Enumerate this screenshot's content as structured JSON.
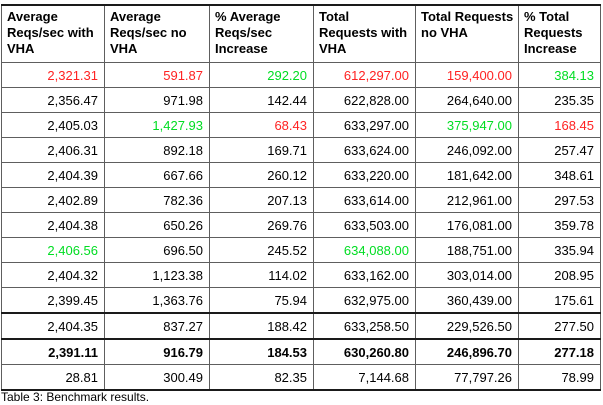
{
  "palette": {
    "red": "#ff2222",
    "green": "#00dd22",
    "text": "#000000"
  },
  "table": {
    "caption": "Table 3: Benchmark results.",
    "columns": [
      "Average Reqs/sec with VHA",
      "Average Reqs/sec no VHA",
      "% Average Reqs/sec Increase",
      "Total Requests with VHA",
      "Total Requests no VHA",
      "% Total Requests Increase"
    ],
    "rows": [
      {
        "cells": [
          "2,321.31",
          "591.87",
          "292.20",
          "612,297.00",
          "159,400.00",
          "384.13"
        ],
        "colors": [
          "red",
          "red",
          "green",
          "red",
          "red",
          "green"
        ],
        "bold": false,
        "thick_top": false
      },
      {
        "cells": [
          "2,356.47",
          "971.98",
          "142.44",
          "622,828.00",
          "264,640.00",
          "235.35"
        ],
        "colors": [
          null,
          null,
          null,
          null,
          null,
          null
        ],
        "bold": false,
        "thick_top": false
      },
      {
        "cells": [
          "2,405.03",
          "1,427.93",
          "68.43",
          "633,297.00",
          "375,947.00",
          "168.45"
        ],
        "colors": [
          null,
          "green",
          "red",
          null,
          "green",
          "red"
        ],
        "bold": false,
        "thick_top": false
      },
      {
        "cells": [
          "2,406.31",
          "892.18",
          "169.71",
          "633,624.00",
          "246,092.00",
          "257.47"
        ],
        "colors": [
          null,
          null,
          null,
          null,
          null,
          null
        ],
        "bold": false,
        "thick_top": false
      },
      {
        "cells": [
          "2,404.39",
          "667.66",
          "260.12",
          "633,220.00",
          "181,642.00",
          "348.61"
        ],
        "colors": [
          null,
          null,
          null,
          null,
          null,
          null
        ],
        "bold": false,
        "thick_top": false
      },
      {
        "cells": [
          "2,402.89",
          "782.36",
          "207.13",
          "633,614.00",
          "212,961.00",
          "297.53"
        ],
        "colors": [
          null,
          null,
          null,
          null,
          null,
          null
        ],
        "bold": false,
        "thick_top": false
      },
      {
        "cells": [
          "2,404.38",
          "650.26",
          "269.76",
          "633,503.00",
          "176,081.00",
          "359.78"
        ],
        "colors": [
          null,
          null,
          null,
          null,
          null,
          null
        ],
        "bold": false,
        "thick_top": false
      },
      {
        "cells": [
          "2,406.56",
          "696.50",
          "245.52",
          "634,088.00",
          "188,751.00",
          "335.94"
        ],
        "colors": [
          "green",
          null,
          null,
          "green",
          null,
          null
        ],
        "bold": false,
        "thick_top": false
      },
      {
        "cells": [
          "2,404.32",
          "1,123.38",
          "114.02",
          "633,162.00",
          "303,014.00",
          "208.95"
        ],
        "colors": [
          null,
          null,
          null,
          null,
          null,
          null
        ],
        "bold": false,
        "thick_top": false
      },
      {
        "cells": [
          "2,399.45",
          "1,363.76",
          "75.94",
          "632,975.00",
          "360,439.00",
          "175.61"
        ],
        "colors": [
          null,
          null,
          null,
          null,
          null,
          null
        ],
        "bold": false,
        "thick_top": false
      },
      {
        "cells": [
          "2,404.35",
          "837.27",
          "188.42",
          "633,258.50",
          "229,526.50",
          "277.50"
        ],
        "colors": [
          null,
          null,
          null,
          null,
          null,
          null
        ],
        "bold": false,
        "thick_top": true
      },
      {
        "cells": [
          "2,391.11",
          "916.79",
          "184.53",
          "630,260.80",
          "246,896.70",
          "277.18"
        ],
        "colors": [
          null,
          null,
          null,
          null,
          null,
          null
        ],
        "bold": true,
        "thick_top": true
      },
      {
        "cells": [
          "28.81",
          "300.49",
          "82.35",
          "7,144.68",
          "77,797.26",
          "78.99"
        ],
        "colors": [
          null,
          null,
          null,
          null,
          null,
          null
        ],
        "bold": false,
        "thick_top": false
      }
    ]
  }
}
